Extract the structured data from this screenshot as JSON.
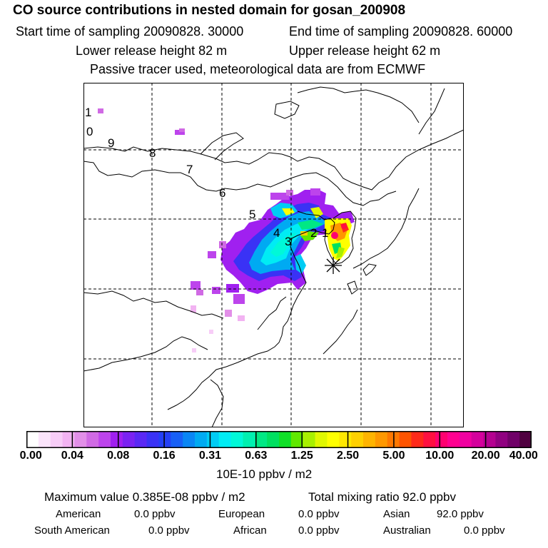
{
  "header": {
    "title": "CO  source contributions in nested domain for gosan_200908",
    "start_time": "Start time of sampling 20090828. 30000",
    "end_time": "End time of sampling 20090828. 60000",
    "lower_height": "Lower release height   82 m",
    "upper_height": "Upper release height   62 m",
    "tracer_note": "Passive tracer used, meteorological data are from ECMWF"
  },
  "map": {
    "trajectory_labels": [
      "1",
      "0",
      "9",
      "8",
      "7",
      "6",
      "5",
      "4",
      "3",
      "2",
      "1"
    ],
    "receptor_marker": "asterisk"
  },
  "colorbar": {
    "ticks": [
      "0.00",
      "0.04",
      "0.08",
      "0.16",
      "0.31",
      "0.63",
      "1.25",
      "2.50",
      "5.00",
      "10.00",
      "20.00",
      "40.00"
    ],
    "units": "10E-10 ppbv / m2",
    "colors": [
      "#ffffff",
      "#fbe4fb",
      "#f7cdf7",
      "#f2b3f2",
      "#e28fe8",
      "#d06ae4",
      "#bd44ec",
      "#a020f0",
      "#7a22f2",
      "#5a28f4",
      "#3a32f5",
      "#2440f6",
      "#1860f6",
      "#0a86f4",
      "#00aaf2",
      "#00ccf4",
      "#00ecf4",
      "#00f8d8",
      "#00f0b0",
      "#00e884",
      "#00e060",
      "#10e028",
      "#60e800",
      "#a8f000",
      "#e0f800",
      "#ffff00",
      "#ffe800",
      "#ffd000",
      "#ffb400",
      "#ff9800",
      "#ff7800",
      "#ff5400",
      "#ff2a1a",
      "#ff1040",
      "#ff0070",
      "#ff0090",
      "#f000a0",
      "#d4009c",
      "#b40090",
      "#900080",
      "#700068",
      "#500040"
    ]
  },
  "summary": {
    "max_value": "Maximum value  0.385E-08 ppbv / m2",
    "total": "Total mixing ratio       92.0 ppbv",
    "regions": [
      {
        "name": "American",
        "value": "0.0 ppbv"
      },
      {
        "name": "European",
        "value": "0.0 ppbv"
      },
      {
        "name": "Asian",
        "value": "92.0 ppbv"
      },
      {
        "name": "South American",
        "value": "0.0 ppbv"
      },
      {
        "name": "African",
        "value": "0.0 ppbv"
      },
      {
        "name": "Australian",
        "value": "0.0 ppbv"
      }
    ]
  }
}
